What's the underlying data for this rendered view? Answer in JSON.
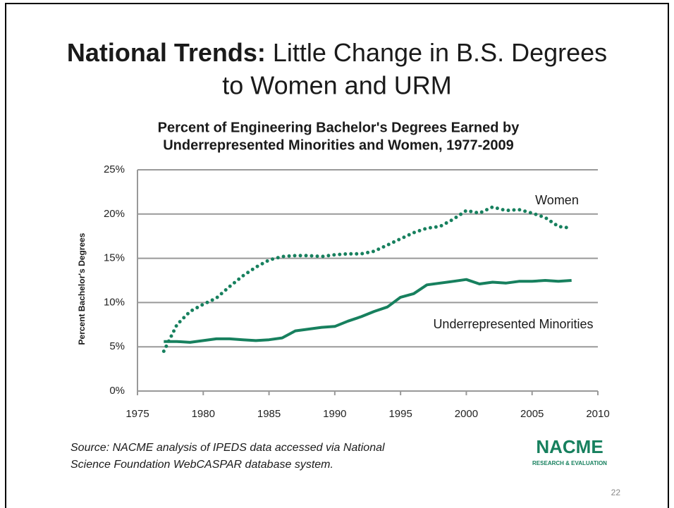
{
  "slide": {
    "title_bold": "National Trends:",
    "title_line1": "Little Change in B.S.  Degrees",
    "title_line2": "to Women and URM",
    "source": [
      "Source: NACME analysis of IPEDS data accessed via National",
      "Science Foundation WebCASPAR database system."
    ],
    "logo": {
      "name": "NACME",
      "tagline": "RESEARCH & EVALUATION"
    },
    "page_number": 22
  },
  "chart_data": {
    "type": "line",
    "title": [
      "Percent of Engineering Bachelor's Degrees Earned by",
      "Underrepresented Minorities and Women, 1977-2009"
    ],
    "y_label": "Percent Bachelor's Degrees",
    "x": [
      1977,
      1978,
      1979,
      1980,
      1981,
      1982,
      1983,
      1984,
      1985,
      1986,
      1987,
      1988,
      1989,
      1990,
      1991,
      1992,
      1993,
      1994,
      1995,
      1996,
      1997,
      1998,
      1999,
      2000,
      2001,
      2002,
      2003,
      2004,
      2005,
      2006,
      2007,
      2008
    ],
    "series": [
      {
        "name": "Women",
        "color": "#17805e",
        "style": "dotted",
        "values": [
          4.5,
          7.5,
          9,
          9.8,
          10.5,
          11.8,
          13,
          14,
          14.8,
          15.2,
          15.3,
          15.3,
          15.2,
          15.4,
          15.5,
          15.5,
          15.8,
          16.5,
          17.2,
          17.9,
          18.4,
          18.6,
          19.4,
          20.4,
          20.1,
          20.8,
          20.4,
          20.5,
          20.1,
          19.6,
          18.6,
          18.4
        ]
      },
      {
        "name": "Underrepresented Minorities",
        "color": "#17805e",
        "style": "solid",
        "values": [
          5.6,
          5.6,
          5.5,
          5.7,
          5.9,
          5.9,
          5.8,
          5.7,
          5.8,
          6.0,
          6.8,
          7.0,
          7.2,
          7.3,
          7.9,
          8.4,
          9.0,
          9.5,
          10.6,
          11.0,
          12.0,
          12.2,
          12.4,
          12.6,
          12.1,
          12.3,
          12.2,
          12.4,
          12.4,
          12.5,
          12.4,
          12.5
        ]
      }
    ],
    "xlim": [
      1975,
      2010
    ],
    "xticks": [
      1975,
      1980,
      1985,
      1990,
      1995,
      2000,
      2005,
      2010
    ],
    "ylim": [
      0,
      25
    ],
    "yticks": [
      {
        "value": 0,
        "label": "0%"
      },
      {
        "value": 5,
        "label": "5%"
      },
      {
        "value": 10,
        "label": "10%"
      },
      {
        "value": 15,
        "label": "15%"
      },
      {
        "value": 20,
        "label": "20%"
      },
      {
        "value": 25,
        "label": "25%"
      }
    ],
    "grid": true
  }
}
